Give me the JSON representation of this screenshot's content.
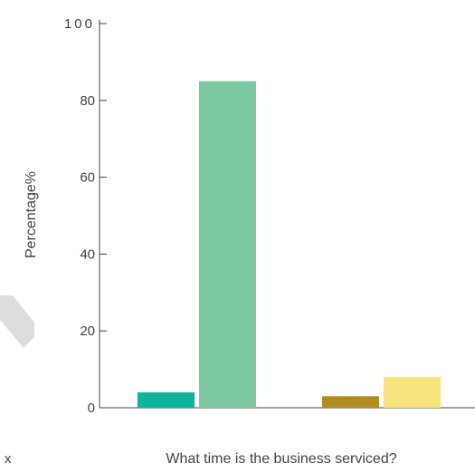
{
  "chart_data": {
    "type": "bar",
    "xlabel": "What time is the business serviced?",
    "ylabel": "Percentage%",
    "ylim": [
      0,
      100
    ],
    "yticks": [
      "0",
      "20",
      "40",
      "60",
      "80",
      "100"
    ],
    "grid": false,
    "legend": "none",
    "categories": [
      "",
      ""
    ],
    "bars": [
      {
        "group": 0,
        "value": 4,
        "color": "#0fb39b"
      },
      {
        "group": 0,
        "value": 85,
        "color": "#7cc9a1"
      },
      {
        "group": 1,
        "value": 3,
        "color": "#b38b21"
      },
      {
        "group": 1,
        "value": 8,
        "color": "#f7e27e"
      }
    ]
  },
  "partial_text": {
    "left_edge_fragment": "x"
  },
  "colors": {
    "axis": "#444444",
    "watermark": "#dddddd"
  }
}
